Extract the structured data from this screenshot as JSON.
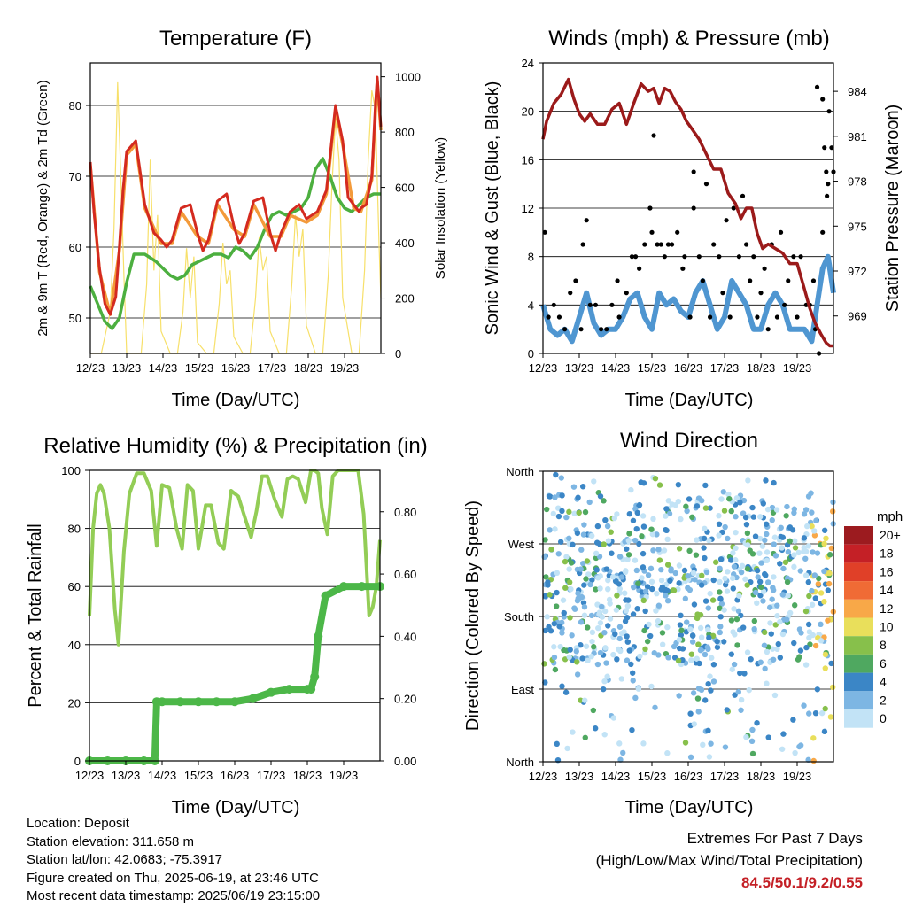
{
  "x_ticks": [
    "12/23",
    "13/23",
    "14/23",
    "15/23",
    "16/23",
    "17/23",
    "18/23",
    "19/23"
  ],
  "x_label": "Time (Day/UTC)",
  "colors": {
    "temp_2m": "#d42a1f",
    "temp_9m": "#f39a3a",
    "dewpoint": "#4caf3f",
    "solar": "#f7e06a",
    "gust": "#000000",
    "wind": "#4f96d1",
    "pressure": "#9b1a1a",
    "rh": "#93cd56",
    "precip": "#4cb748"
  },
  "chart_data": [
    {
      "type": "line",
      "title": "Temperature (F)",
      "ylabel": "2m & 9m T (Red, Orange) & 2m Td (Green)",
      "y2label": "Solar Insolation (Yellow)",
      "ylim": [
        45,
        86
      ],
      "y2lim": [
        0,
        1050
      ],
      "yticks": [
        "50",
        "60",
        "70",
        "80"
      ],
      "y2ticks": [
        "0",
        "200",
        "400",
        "600",
        "800",
        "1000"
      ],
      "grid": true,
      "series": [
        {
          "name": "2m T",
          "x": [
            0,
            0.1,
            0.25,
            0.4,
            0.55,
            0.7,
            0.8,
            0.9,
            1.0,
            1.25,
            1.5,
            1.75,
            1.95,
            2.1,
            2.25,
            2.5,
            2.75,
            2.95,
            3.1,
            3.25,
            3.5,
            3.75,
            3.95,
            4.1,
            4.25,
            4.5,
            4.75,
            4.95,
            5.1,
            5.25,
            5.5,
            5.75,
            5.95,
            6.1,
            6.25,
            6.5,
            6.75,
            6.95,
            7.1,
            7.25,
            7.4,
            7.45,
            7.6,
            7.75,
            7.85,
            7.9,
            8.0
          ],
          "values": [
            72,
            65,
            57,
            52,
            50.5,
            53,
            60,
            68,
            73.5,
            75,
            66,
            62,
            61,
            60,
            61,
            65.5,
            66,
            62,
            59.5,
            61,
            66.5,
            67.5,
            63,
            60.5,
            62,
            66.5,
            67,
            62,
            59.5,
            62,
            65,
            66,
            64,
            64.5,
            65,
            68,
            80,
            75,
            67,
            66,
            65,
            65.5,
            66,
            70,
            80,
            84,
            77
          ]
        },
        {
          "name": "9m T",
          "x": [
            0,
            0.25,
            0.55,
            0.8,
            1.0,
            1.25,
            1.5,
            1.95,
            2.25,
            2.5,
            2.95,
            3.25,
            3.5,
            3.95,
            4.25,
            4.5,
            4.95,
            5.25,
            5.5,
            5.95,
            6.25,
            6.5,
            6.75,
            6.95,
            7.25,
            7.45,
            7.75,
            7.9,
            8.0
          ],
          "values": [
            71.5,
            56.5,
            50.5,
            59.5,
            73,
            74.5,
            65.5,
            60.5,
            60.5,
            65,
            61.5,
            60.5,
            66,
            62.5,
            61.5,
            66,
            61.5,
            61.5,
            64.5,
            63.5,
            64.5,
            67.5,
            79.5,
            74.5,
            65.5,
            65,
            69.5,
            83.5,
            76.5
          ]
        },
        {
          "name": "2m Td",
          "x": [
            0,
            0.2,
            0.4,
            0.6,
            0.8,
            1.0,
            1.2,
            1.5,
            1.8,
            2.0,
            2.2,
            2.4,
            2.6,
            2.8,
            3.0,
            3.2,
            3.4,
            3.6,
            3.8,
            4.0,
            4.2,
            4.4,
            4.6,
            4.8,
            5.0,
            5.2,
            5.4,
            5.6,
            5.8,
            6.0,
            6.2,
            6.4,
            6.6,
            6.8,
            7.0,
            7.2,
            7.4,
            7.6,
            7.8,
            8.0
          ],
          "values": [
            54.5,
            52,
            49.5,
            48.5,
            50,
            55,
            59,
            59,
            58,
            57,
            56,
            55.5,
            56,
            57.5,
            58,
            58.5,
            59,
            59,
            58.5,
            60,
            59.5,
            58.5,
            60,
            62.5,
            64.5,
            65,
            64.5,
            65,
            65.5,
            67,
            71,
            72.5,
            70,
            67,
            65.5,
            65,
            66,
            67,
            67.5,
            67.5
          ]
        },
        {
          "name": "Solar",
          "x": [
            0,
            0.3,
            0.55,
            0.65,
            0.75,
            0.85,
            0.92,
            1.0,
            1.2,
            1.4,
            1.55,
            1.65,
            1.75,
            1.85,
            1.95,
            2.2,
            2.4,
            2.55,
            2.65,
            2.75,
            2.85,
            2.95,
            3.2,
            3.4,
            3.55,
            3.65,
            3.75,
            3.85,
            3.95,
            4.2,
            4.4,
            4.55,
            4.65,
            4.75,
            4.85,
            4.95,
            5.2,
            5.4,
            5.55,
            5.65,
            5.75,
            5.85,
            5.95,
            6.2,
            6.4,
            6.55,
            6.65,
            6.75,
            6.85,
            6.95,
            7.2,
            7.4,
            7.55,
            7.65,
            7.75,
            7.85,
            7.95,
            8.0
          ],
          "values": [
            0,
            0,
            150,
            450,
            980,
            600,
            300,
            0,
            0,
            0,
            250,
            700,
            300,
            500,
            80,
            0,
            0,
            150,
            380,
            200,
            350,
            40,
            0,
            0,
            180,
            400,
            250,
            300,
            60,
            0,
            0,
            200,
            420,
            300,
            350,
            80,
            0,
            0,
            250,
            500,
            350,
            450,
            100,
            0,
            0,
            280,
            600,
            850,
            700,
            200,
            0,
            0,
            300,
            700,
            950,
            880,
            400,
            200
          ]
        }
      ]
    },
    {
      "type": "scatter",
      "title": "Winds (mph) & Pressure (mb)",
      "ylabel": "Sonic Wind & Gust (Blue, Black)",
      "y2label": "Station Pressure (Maroon)",
      "ylim": [
        0,
        24
      ],
      "y2lim": [
        966.5,
        985.9
      ],
      "yticks": [
        "0",
        "4",
        "8",
        "12",
        "16",
        "20",
        "24"
      ],
      "y2ticks": [
        "969",
        "972",
        "975",
        "978",
        "981",
        "984"
      ],
      "grid": true,
      "series": [
        {
          "name": "Pressure",
          "x": [
            0,
            0.1,
            0.3,
            0.5,
            0.7,
            0.85,
            1.0,
            1.15,
            1.3,
            1.5,
            1.7,
            1.9,
            2.1,
            2.3,
            2.5,
            2.7,
            2.9,
            3.05,
            3.2,
            3.35,
            3.5,
            3.65,
            3.8,
            3.95,
            4.1,
            4.3,
            4.5,
            4.7,
            4.9,
            5.1,
            5.3,
            5.45,
            5.6,
            5.75,
            5.9,
            6.05,
            6.2,
            6.4,
            6.6,
            6.8,
            7.0,
            7.2,
            7.35,
            7.5,
            7.65,
            7.8,
            7.9,
            8.0
          ],
          "values": [
            980.8,
            982,
            983.2,
            983.8,
            984.8,
            983.5,
            982.5,
            982,
            982.5,
            981.8,
            981.8,
            982.8,
            983.2,
            981.8,
            983.2,
            984.5,
            984,
            984.2,
            983.2,
            984.2,
            984,
            983.3,
            982.8,
            982,
            981.5,
            980.8,
            979.8,
            978.8,
            978.8,
            977.2,
            976.5,
            975.5,
            976.2,
            976.2,
            974.5,
            973.5,
            973.8,
            973.5,
            973.2,
            972.5,
            972.5,
            970.8,
            969.5,
            968.5,
            967.8,
            967.2,
            967,
            967
          ]
        },
        {
          "name": "Gust",
          "x": [
            0.05,
            0.3,
            0.6,
            0.9,
            1.1,
            1.3,
            1.6,
            1.9,
            2.1,
            2.3,
            2.55,
            2.8,
            3.0,
            3.25,
            3.45,
            3.7,
            3.9,
            4.15,
            4.4,
            4.6,
            4.85,
            5.05,
            5.25,
            5.5,
            5.7,
            5.9,
            6.1,
            6.3,
            6.55,
            6.75,
            7.0,
            7.25,
            7.45,
            7.6,
            7.8,
            7.95,
            0.15,
            0.45,
            0.75,
            1.05,
            1.45,
            1.75,
            2.05,
            2.45,
            2.65,
            2.95,
            3.15,
            3.35,
            3.55,
            3.85,
            4.05,
            4.3,
            4.5,
            4.7,
            4.95,
            5.15,
            5.4,
            5.6,
            5.8,
            6.0,
            6.2,
            6.45,
            6.65,
            6.9,
            7.1,
            7.35,
            7.5,
            7.7,
            7.85,
            8.0,
            3.05,
            4.15,
            1.2,
            7.55,
            7.7,
            7.75,
            7.82,
            7.88
          ],
          "values": [
            10,
            4,
            2,
            6,
            9,
            4,
            2,
            4,
            3,
            5,
            8,
            9,
            10,
            9,
            9,
            10,
            8,
            12,
            6,
            3,
            8,
            11,
            12,
            13,
            6,
            3,
            7,
            9,
            10,
            6,
            3,
            4,
            6,
            0,
            15,
            17,
            3,
            3,
            5,
            2,
            4,
            2,
            6,
            8,
            7,
            12,
            9,
            8,
            9,
            7,
            3,
            8,
            14,
            9,
            5,
            3,
            8,
            9,
            8,
            5,
            2,
            3,
            4,
            8,
            8,
            4,
            2,
            10,
            14,
            15,
            18,
            15,
            11,
            22,
            21,
            17,
            13,
            20
          ]
        },
        {
          "name": "Wind",
          "x": [
            0,
            0.2,
            0.4,
            0.6,
            0.8,
            1.0,
            1.2,
            1.4,
            1.6,
            1.8,
            2.0,
            2.2,
            2.4,
            2.6,
            2.8,
            3.0,
            3.2,
            3.4,
            3.6,
            3.8,
            4.0,
            4.2,
            4.4,
            4.6,
            4.8,
            5.0,
            5.2,
            5.4,
            5.6,
            5.8,
            6.0,
            6.2,
            6.4,
            6.6,
            6.8,
            7.0,
            7.2,
            7.4,
            7.55,
            7.7,
            7.85,
            8.0
          ],
          "values": [
            4,
            2,
            1.5,
            2,
            1,
            3,
            5,
            2.5,
            1.5,
            2,
            2,
            3,
            4.5,
            5,
            3,
            2,
            5,
            4,
            4.5,
            3.5,
            3,
            5,
            6,
            4,
            2,
            3,
            6,
            5,
            4,
            2,
            2,
            4,
            5,
            4,
            2,
            2,
            2,
            1,
            4,
            7,
            8,
            5
          ]
        }
      ]
    },
    {
      "type": "line",
      "title": "Relative Humidity (%) & Precipitation (in)",
      "ylabel": "Percent & Total Rainfall",
      "ylim": [
        0,
        100
      ],
      "y2lim": [
        0,
        0.933
      ],
      "yticks": [
        "0",
        "20",
        "40",
        "60",
        "80",
        "100"
      ],
      "y2ticks": [
        "0.00",
        "0.20",
        "0.40",
        "0.60",
        "0.80"
      ],
      "grid": true,
      "series": [
        {
          "name": "RH",
          "x": [
            0,
            0.1,
            0.2,
            0.3,
            0.4,
            0.55,
            0.7,
            0.8,
            0.95,
            1.1,
            1.3,
            1.5,
            1.7,
            1.85,
            2.0,
            2.2,
            2.4,
            2.55,
            2.7,
            2.85,
            3.0,
            3.2,
            3.35,
            3.55,
            3.7,
            3.9,
            4.1,
            4.3,
            4.45,
            4.6,
            4.75,
            4.9,
            5.1,
            5.3,
            5.45,
            5.6,
            5.75,
            5.95,
            6.1,
            6.2,
            6.3,
            6.4,
            6.55,
            6.7,
            6.85,
            7.0,
            7.25,
            7.4,
            7.55,
            7.7,
            7.8,
            7.9,
            8.0
          ],
          "values": [
            50,
            80,
            92,
            95,
            92,
            80,
            52,
            40,
            72,
            92,
            99,
            99,
            93,
            74,
            95,
            94,
            80,
            73,
            95,
            93,
            73,
            88,
            88,
            75,
            73,
            93,
            91,
            83,
            77,
            86,
            98,
            98,
            90,
            84,
            97,
            98,
            97,
            89,
            100,
            100,
            99,
            87,
            78,
            98,
            100,
            100,
            100,
            100,
            85,
            50,
            53,
            60,
            76
          ]
        },
        {
          "name": "Precipitation",
          "x": [
            0,
            0.5,
            1.0,
            1.5,
            1.8,
            1.85,
            2.0,
            2.5,
            3.0,
            3.5,
            4.0,
            4.5,
            5.0,
            5.5,
            6.0,
            6.1,
            6.2,
            6.3,
            6.5,
            7.0,
            7.5,
            8.0
          ],
          "values": [
            0,
            0,
            0,
            0,
            0,
            0.19,
            0.19,
            0.19,
            0.19,
            0.19,
            0.19,
            0.2,
            0.22,
            0.23,
            0.23,
            0.23,
            0.27,
            0.4,
            0.53,
            0.56,
            0.56,
            0.56
          ]
        }
      ]
    },
    {
      "type": "scatter",
      "title": "Wind Direction",
      "ylabel": "Direction (Colored By Speed)",
      "yticks": [
        "North",
        "East",
        "South",
        "West",
        "North"
      ],
      "ylim": [
        0,
        360
      ],
      "grid": true,
      "legend": {
        "title": "mph",
        "labels": [
          "20+",
          "18",
          "16",
          "14",
          "12",
          "10",
          "8",
          "6",
          "4",
          "2",
          "0"
        ],
        "colors": [
          "#9c1b1f",
          "#c42026",
          "#e04028",
          "#f06b35",
          "#f8a848",
          "#e9df5b",
          "#87c04b",
          "#4fa860",
          "#3b86c6",
          "#7db6e3",
          "#c2e3f6"
        ]
      }
    }
  ],
  "metadata": {
    "location": "Location: Deposit",
    "elevation": "Station elevation: 311.658 m",
    "latlon": "Station lat/lon: 42.0683; -75.3917",
    "created": "Figure created on Thu, 2025-06-19, at 23:46 UTC",
    "recent": "Most recent data timestamp: 2025/06/19 23:15:00"
  },
  "extremes": {
    "heading": "Extremes For Past 7 Days",
    "subheading": "(High/Low/Max Wind/Total Precipitation)",
    "values": "84.5/50.1/9.2/0.55"
  }
}
